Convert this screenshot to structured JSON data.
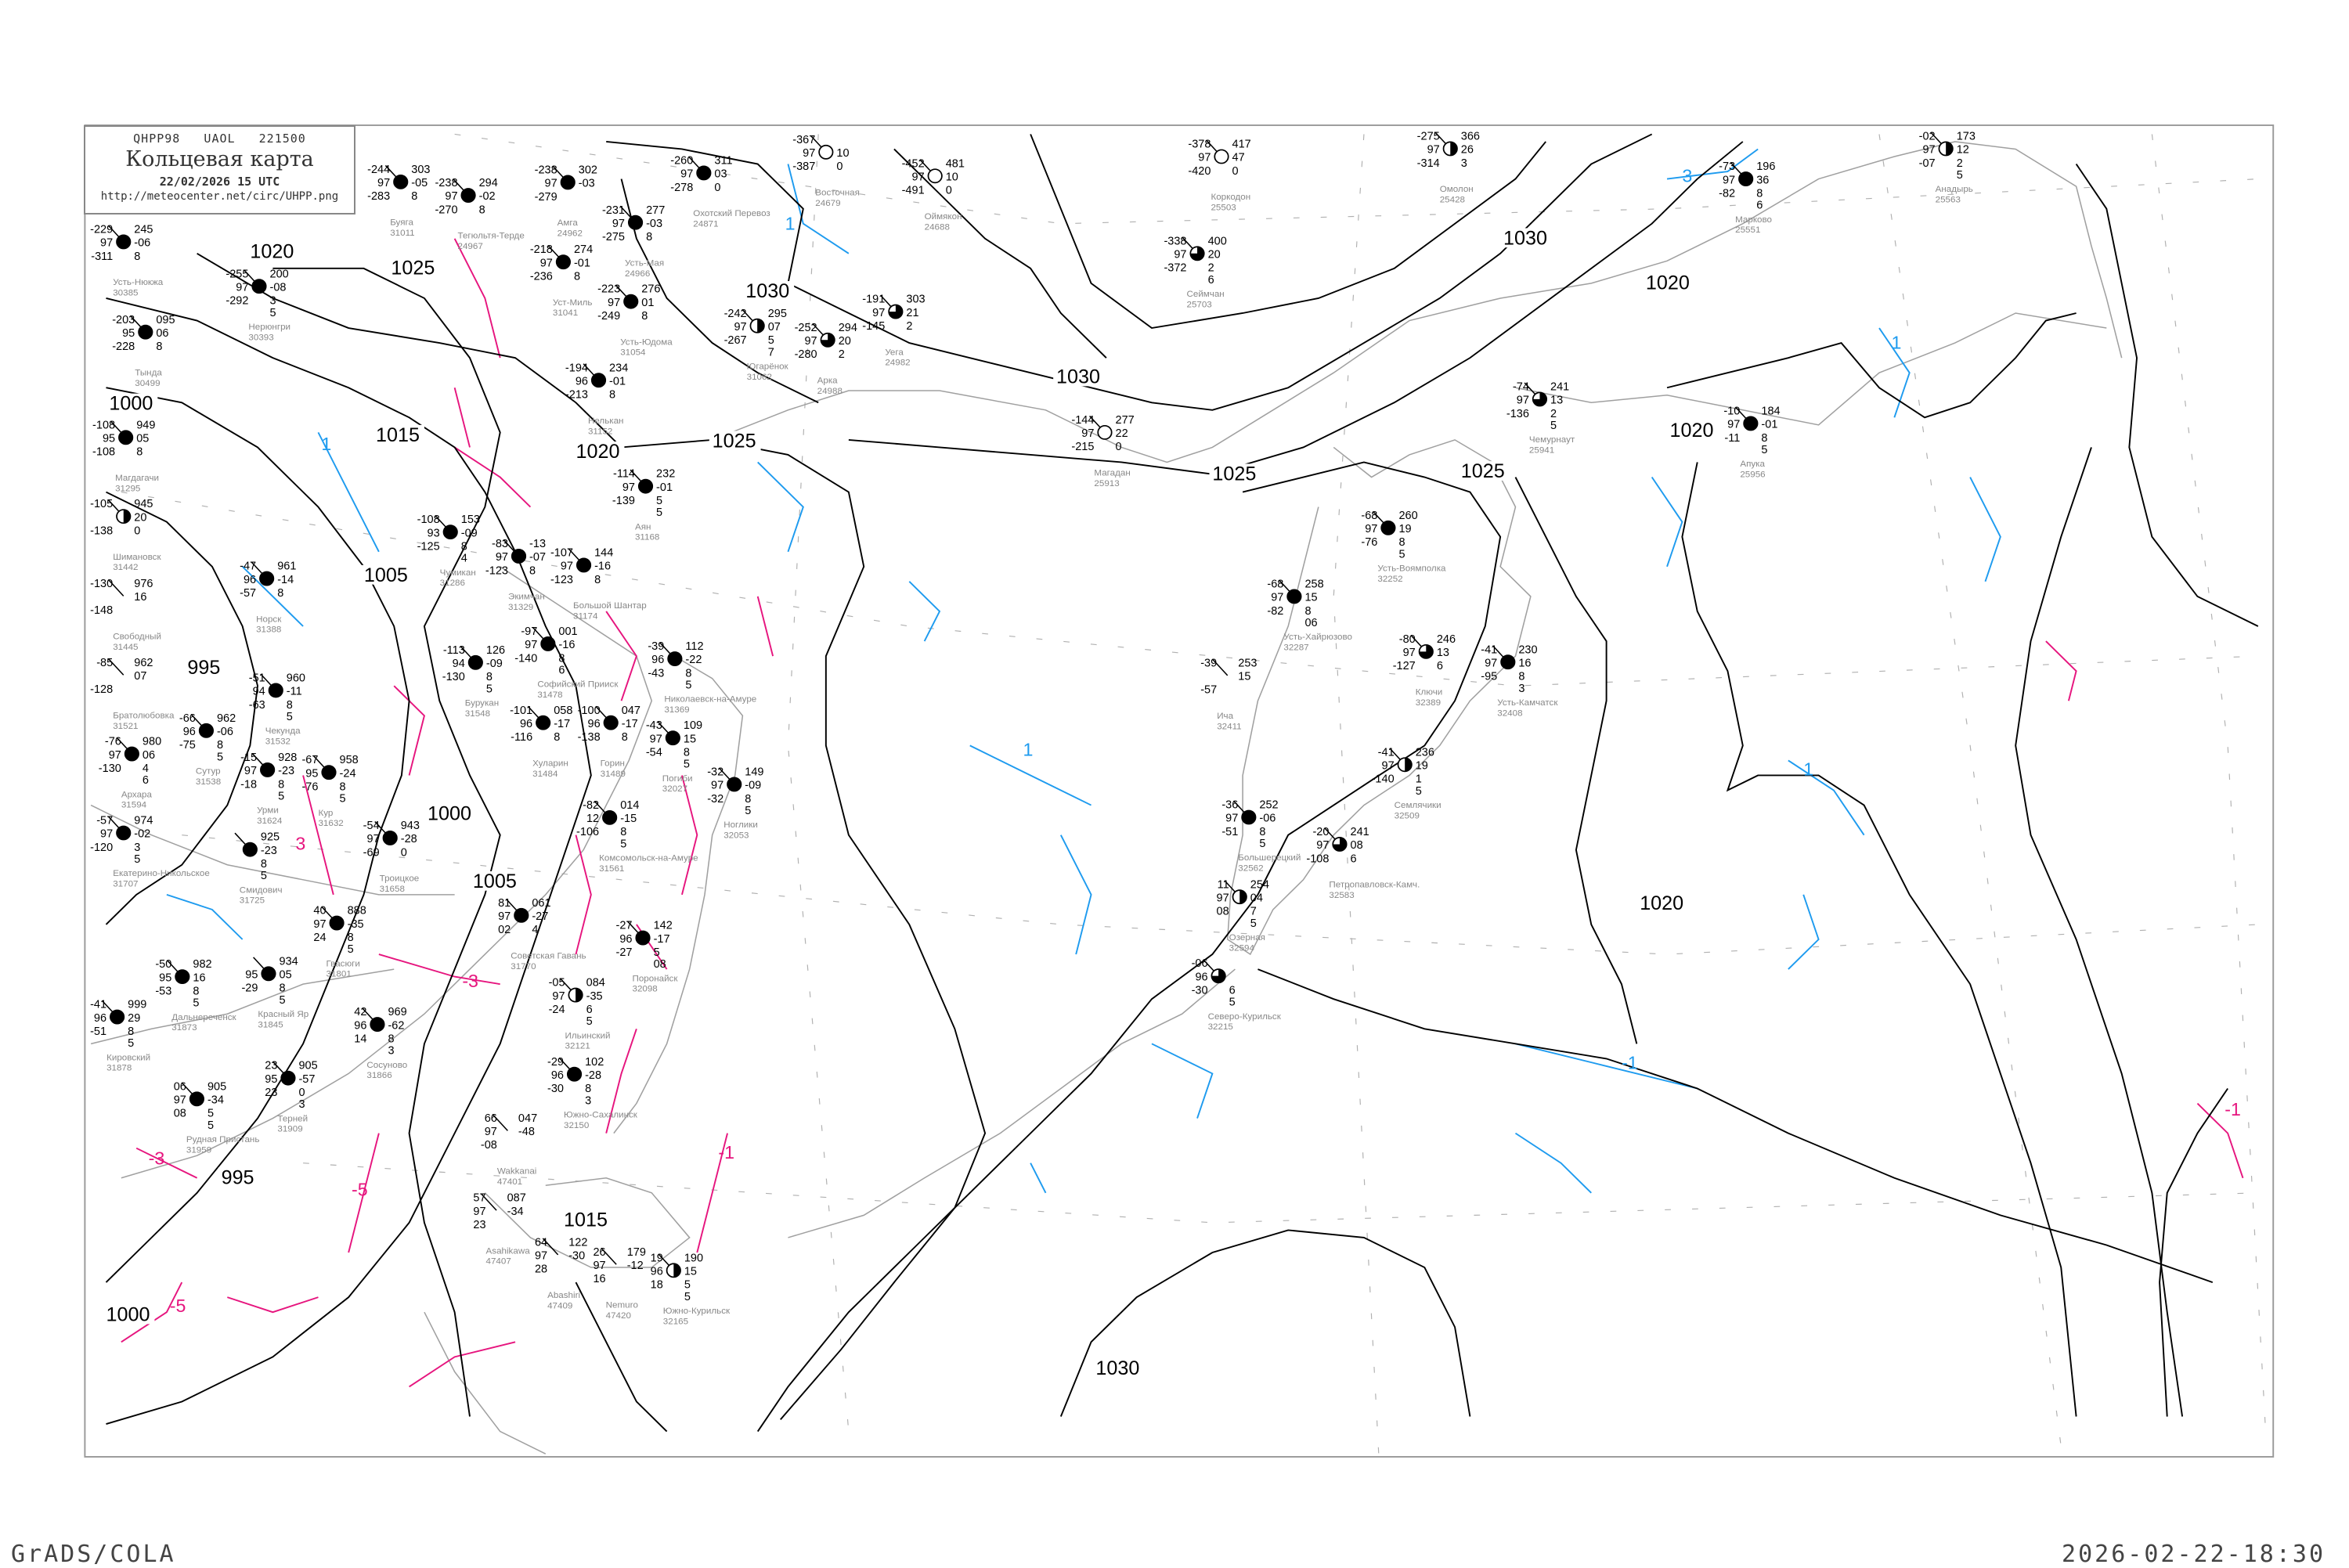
{
  "header": {
    "code": "QHPP98   UAOL   221500",
    "title": "Кольцевая карта",
    "datetime": "22/02/2026 15 UTC",
    "url": "http://meteocenter.net/circ/UHPP.png"
  },
  "footer": {
    "left": "GrADS/COLA",
    "right": "2026-02-22-18:30"
  },
  "colors": {
    "isobar": "#000000",
    "coast": "#a0a0a0",
    "isotherm_cold": "#1e9bef",
    "isotherm_warm": "#e6157e",
    "grid": "#b0b0b0",
    "precip_blue": "#3399ff",
    "precip_green": "#22cc44",
    "precip_yellow": "#ffff99"
  },
  "isobar_labels": [
    "1020",
    "1025",
    "1030",
    "1020",
    "1030",
    "1030",
    "1000",
    "1015",
    "1020",
    "1025",
    "1025",
    "1025",
    "1020",
    "1005",
    "995",
    "1000",
    "1005",
    "1020",
    "1030",
    "1015",
    "995",
    "1000"
  ],
  "isotherm_labels_cold": [
    "1",
    "1",
    "1",
    "1",
    "3",
    "1",
    "-1"
  ],
  "isotherm_labels_warm": [
    "-3",
    "3",
    "-5",
    "-5",
    "-3",
    "-1",
    "-1"
  ],
  "stations": [
    {
      "name": "Коркодон",
      "id": "25503",
      "cover": "empty",
      "tl": "-378",
      "tr": "417",
      "ml": "97",
      "mr": "47",
      "bl": "-420",
      "br": "0",
      "br2": ""
    },
    {
      "name": "Омолон",
      "id": "25428",
      "cover": "half",
      "tl": "-275",
      "tr": "366",
      "ml": "97",
      "mr": "26",
      "bl": "-314",
      "br": "3",
      "br2": ""
    },
    {
      "name": "Сеймчан",
      "id": "25703",
      "cover": "three-quarter",
      "tl": "-338",
      "tr": "400",
      "ml": "97",
      "mr": "20",
      "bl": "-372",
      "br": "2",
      "br2": "6"
    },
    {
      "name": "Марково",
      "id": "25551",
      "cover": "full",
      "tl": "-73",
      "tr": "196",
      "ml": "97",
      "mr": "36",
      "bl": "-82",
      "br": "8",
      "br2": "6"
    },
    {
      "name": "Анадырь",
      "id": "25563",
      "cover": "half",
      "tl": "-02",
      "tr": "173",
      "ml": "97",
      "mr": "12",
      "bl": "-07",
      "br": "2",
      "br2": "5"
    },
    {
      "name": "Чемурнаут",
      "id": "25941",
      "cover": "three-quarter",
      "tl": "-74",
      "tr": "241",
      "ml": "97",
      "mr": "13",
      "bl": "-136",
      "br": "2",
      "br2": "5"
    },
    {
      "name": "Апука",
      "id": "25956",
      "cover": "full",
      "tl": "-10",
      "tr": "184",
      "ml": "97",
      "mr": "-01",
      "bl": "-11",
      "br": "8",
      "br2": "5"
    },
    {
      "name": "Усть-Воямполка",
      "id": "32252",
      "cover": "full",
      "tl": "-68",
      "tr": "260",
      "ml": "97",
      "mr": "19",
      "bl": "-76",
      "br": "8",
      "br2": "5"
    },
    {
      "name": "Усть-Хайрюзово",
      "id": "32287",
      "cover": "full",
      "tl": "-68",
      "tr": "258",
      "ml": "97",
      "mr": "15",
      "bl": "-82",
      "br": "8",
      "br2": "06"
    },
    {
      "name": "Ича",
      "id": "32411",
      "cover": "none",
      "tl": "-39",
      "tr": "253",
      "ml": "",
      "mr": "15",
      "bl": "-57",
      "br": "",
      "br2": ""
    },
    {
      "name": "Ключи",
      "id": "32389",
      "cover": "three-quarter",
      "tl": "-80",
      "tr": "246",
      "ml": "97",
      "mr": "13",
      "bl": "-127",
      "br": "6",
      "br2": ""
    },
    {
      "name": "Усть-Камчатск",
      "id": "32408",
      "cover": "full",
      "tl": "-41",
      "tr": "230",
      "ml": "97",
      "mr": "16",
      "bl": "-95",
      "br": "8",
      "br2": "3"
    },
    {
      "name": "Семлячики",
      "id": "32509",
      "cover": "half",
      "tl": "-41",
      "tr": "236",
      "ml": "97",
      "mr": "19",
      "bl": "-140",
      "br": "1",
      "br2": "5"
    },
    {
      "name": "Большерецкий",
      "id": "32562",
      "cover": "full",
      "tl": "-36",
      "tr": "252",
      "ml": "97",
      "mr": "-06",
      "bl": "-51",
      "br": "8",
      "br2": "5"
    },
    {
      "name": "Петропавловск-Камч.",
      "id": "32583",
      "cover": "three-quarter",
      "tl": "-20",
      "tr": "241",
      "ml": "97",
      "mr": "08",
      "bl": "-108",
      "br": "6",
      "br2": ""
    },
    {
      "name": "Озерная",
      "id": "32594",
      "cover": "half",
      "tl": "11",
      "tr": "254",
      "ml": "97",
      "mr": "04",
      "bl": "08",
      "br": "7",
      "br2": "5"
    },
    {
      "name": "Северо-Курильск",
      "id": "32215",
      "cover": "three-quarter",
      "tl": "-06",
      "tr": "",
      "ml": "96",
      "mr": "",
      "bl": "-30",
      "br": "6",
      "br2": "5"
    },
    {
      "name": "Оймякон",
      "id": "24688",
      "cover": "empty",
      "tl": "-452",
      "tr": "481",
      "ml": "97",
      "mr": "10",
      "bl": "-491",
      "br": "0",
      "br2": ""
    },
    {
      "name": "Восточная",
      "id": "24679",
      "cover": "empty",
      "tl": "-367",
      "tr": "",
      "ml": "97",
      "mr": "10",
      "bl": "-387",
      "br": "0",
      "br2": ""
    },
    {
      "name": "Охотский Перевоз",
      "id": "24871",
      "cover": "full",
      "tl": "-260",
      "tr": "311",
      "ml": "97",
      "mr": "03",
      "bl": "-278",
      "br": "0",
      "br2": ""
    },
    {
      "name": "Усть-Мая",
      "id": "24966",
      "cover": "full",
      "tl": "-231",
      "tr": "277",
      "ml": "97",
      "mr": "-03",
      "bl": "-275",
      "br": "8",
      "br2": ""
    },
    {
      "name": "Амга",
      "id": "24962",
      "cover": "full",
      "tl": "-238",
      "tr": "302",
      "ml": "97",
      "mr": "-03",
      "bl": "-279",
      "br": "",
      "br2": ""
    },
    {
      "name": "Тегюльтя-Терде",
      "id": "24967",
      "cover": "full",
      "tl": "-238",
      "tr": "294",
      "ml": "97",
      "mr": "-02",
      "bl": "-270",
      "br": "8",
      "br2": ""
    },
    {
      "name": "Буяга",
      "id": "31011",
      "cover": "full",
      "tl": "-244",
      "tr": "303",
      "ml": "97",
      "mr": "-05",
      "bl": "-283",
      "br": "8",
      "br2": ""
    },
    {
      "name": "Усть-Нюкжа",
      "id": "30385",
      "cover": "full",
      "tl": "-229",
      "tr": "245",
      "ml": "97",
      "mr": "-06",
      "bl": "-311",
      "br": "8",
      "br2": ""
    },
    {
      "name": "Нерюнгри",
      "id": "30393",
      "cover": "full",
      "tl": "-255",
      "tr": "200",
      "ml": "97",
      "mr": "-08",
      "bl": "-292",
      "br": "3",
      "br2": "5"
    },
    {
      "name": "Тында",
      "id": "30499",
      "cover": "full",
      "tl": "-203",
      "tr": "095",
      "ml": "95",
      "mr": "06",
      "bl": "-228",
      "br": "8",
      "br2": ""
    },
    {
      "name": "Уст-Миль",
      "id": "31041",
      "cover": "full",
      "tl": "-218",
      "tr": "274",
      "ml": "97",
      "mr": "-01",
      "bl": "-236",
      "br": "8",
      "br2": ""
    },
    {
      "name": "Усть-Юдома",
      "id": "31054",
      "cover": "full",
      "tl": "-223",
      "tr": "276",
      "ml": "97",
      "mr": "01",
      "bl": "-249",
      "br": "8",
      "br2": ""
    },
    {
      "name": "Югарёнок",
      "id": "31062",
      "cover": "half",
      "tl": "-242",
      "tr": "295",
      "ml": "97",
      "mr": "07",
      "bl": "-267",
      "br": "5",
      "br2": "7"
    },
    {
      "name": "Уега",
      "id": "24982",
      "cover": "three-quarter",
      "tl": "-191",
      "tr": "303",
      "ml": "97",
      "mr": "21",
      "bl": "-145",
      "br": "2",
      "br2": ""
    },
    {
      "name": "Арка",
      "id": "24988",
      "cover": "three-quarter",
      "tl": "-252",
      "tr": "294",
      "ml": "97",
      "mr": "20",
      "bl": "-280",
      "br": "2",
      "br2": ""
    },
    {
      "name": "Магадан",
      "id": "25913",
      "cover": "empty",
      "tl": "-144",
      "tr": "277",
      "ml": "97",
      "mr": "22",
      "bl": "-215",
      "br": "0",
      "br2": ""
    },
    {
      "name": "Нелькан",
      "id": "31152",
      "cover": "full",
      "tl": "-194",
      "tr": "234",
      "ml": "96",
      "mr": "-01",
      "bl": "-213",
      "br": "8",
      "br2": ""
    },
    {
      "name": "Аян",
      "id": "31168",
      "cover": "full",
      "tl": "-114",
      "tr": "232",
      "ml": "97",
      "mr": "-01",
      "bl": "-139",
      "br": "5",
      "br2": "5"
    },
    {
      "name": "Магдагачи",
      "id": "31295",
      "cover": "full",
      "tl": "-108",
      "tr": "949",
      "ml": "95",
      "mr": "05",
      "bl": "-108",
      "br": "8",
      "br2": ""
    },
    {
      "name": "Шимановск",
      "id": "31442",
      "cover": "half",
      "tl": "-105",
      "tr": "945",
      "ml": "",
      "mr": "20",
      "bl": "-138",
      "br": "0",
      "br2": ""
    },
    {
      "name": "Свободный",
      "id": "31445",
      "cover": "none",
      "tl": "-130",
      "tr": "976",
      "ml": "",
      "mr": "16",
      "bl": "-148",
      "br": "",
      "br2": ""
    },
    {
      "name": "Норск",
      "id": "31388",
      "cover": "full",
      "tl": "-47",
      "tr": "961",
      "ml": "96",
      "mr": "-14",
      "bl": "-57",
      "br": "8",
      "br2": ""
    },
    {
      "name": "Экимчан",
      "id": "31329",
      "cover": "full",
      "tl": "-83",
      "tr": "-13",
      "ml": "97",
      "mr": "-07",
      "bl": "-123",
      "br": "8",
      "br2": ""
    },
    {
      "name": "Чумикан",
      "id": "31286",
      "cover": "full",
      "tl": "-108",
      "tr": "153",
      "ml": "93",
      "mr": "-09",
      "bl": "-125",
      "br": "8",
      "br2": "4"
    },
    {
      "name": "Бурукан",
      "id": "31548",
      "cover": "full",
      "tl": "-113",
      "tr": "126",
      "ml": "94",
      "mr": "-09",
      "bl": "-130",
      "br": "8",
      "br2": "5"
    },
    {
      "name": "Софийский Прииск",
      "id": "31478",
      "cover": "full",
      "tl": "-97",
      "tr": "001",
      "ml": "97",
      "mr": "-16",
      "bl": "-140",
      "br": "8",
      "br2": "6"
    },
    {
      "name": "Большой Шантар",
      "id": "31174",
      "cover": "full",
      "tl": "-107",
      "tr": "144",
      "ml": "97",
      "mr": "-16",
      "bl": "-123",
      "br": "8",
      "br2": ""
    },
    {
      "name": "Николаевск-на-Амуре",
      "id": "31369",
      "cover": "full",
      "tl": "-39",
      "tr": "112",
      "ml": "96",
      "mr": "-22",
      "bl": "-43",
      "br": "8",
      "br2": "5"
    },
    {
      "name": "Погиби",
      "id": "32027",
      "cover": "full",
      "tl": "-43",
      "tr": "109",
      "ml": "97",
      "mr": "15",
      "bl": "-54",
      "br": "8",
      "br2": "5"
    },
    {
      "name": "Ноглики",
      "id": "32053",
      "cover": "full",
      "tl": "-32",
      "tr": "149",
      "ml": "97",
      "mr": "-09",
      "bl": "-32",
      "br": "8",
      "br2": "5"
    },
    {
      "name": "Хуларин",
      "id": "31484",
      "cover": "full",
      "tl": "-101",
      "tr": "058",
      "ml": "96",
      "mr": "-17",
      "bl": "-116",
      "br": "8",
      "br2": ""
    },
    {
      "name": "Горин",
      "id": "31489",
      "cover": "full",
      "tl": "-100",
      "tr": "047",
      "ml": "96",
      "mr": "-17",
      "bl": "-138",
      "br": "8",
      "br2": ""
    },
    {
      "name": "Комсомольск-на-Амуре",
      "id": "31561",
      "cover": "full",
      "tl": "-82",
      "tr": "014",
      "ml": "12",
      "mr": "-15",
      "bl": "-106",
      "br": "8",
      "br2": "5"
    },
    {
      "name": "Чекунда",
      "id": "31532",
      "cover": "full",
      "tl": "-51",
      "tr": "960",
      "ml": "94",
      "mr": "-11",
      "bl": "-63",
      "br": "8",
      "br2": "5"
    },
    {
      "name": "Сутур",
      "id": "31538",
      "cover": "full",
      "tl": "-66",
      "tr": "962",
      "ml": "96",
      "mr": "-06",
      "bl": "-75",
      "br": "8",
      "br2": "5"
    },
    {
      "name": "Архара",
      "id": "31594",
      "cover": "full",
      "tl": "-76",
      "tr": "980",
      "ml": "97",
      "mr": "06",
      "bl": "-130",
      "br": "4",
      "br2": "6"
    },
    {
      "name": "Братолюбовка",
      "id": "31521",
      "cover": "none",
      "tl": "-85",
      "tr": "962",
      "ml": "",
      "mr": "07",
      "bl": "-128",
      "br": "",
      "br2": ""
    },
    {
      "name": "Урми",
      "id": "31624",
      "cover": "full",
      "tl": "-15",
      "tr": "928",
      "ml": "97",
      "mr": "-23",
      "bl": "-18",
      "br": "8",
      "br2": "5"
    },
    {
      "name": "Кур",
      "id": "31632",
      "cover": "full",
      "tl": "-67",
      "tr": "958",
      "ml": "95",
      "mr": "-24",
      "bl": "-76",
      "br": "8",
      "br2": "5"
    },
    {
      "name": "Екатерино-Никольское",
      "id": "31707",
      "cover": "full",
      "tl": "-57",
      "tr": "974",
      "ml": "97",
      "mr": "-02",
      "bl": "-120",
      "br": "3",
      "br2": "5"
    },
    {
      "name": "Смидович",
      "id": "31725",
      "cover": "full",
      "tl": "",
      "tr": "925",
      "ml": "",
      "mr": "-23",
      "bl": "",
      "br": "8",
      "br2": "5"
    },
    {
      "name": "Троицкое",
      "id": "31658",
      "cover": "full",
      "tl": "-54",
      "tr": "943",
      "ml": "97",
      "mr": "-28",
      "bl": "-69",
      "br": "0",
      "br2": ""
    },
    {
      "name": "Гвасюги",
      "id": "31801",
      "cover": "full",
      "tl": "40",
      "tr": "888",
      "ml": "97",
      "mr": "-35",
      "bl": "24",
      "br": "8",
      "br2": "5"
    },
    {
      "name": "Дальнереченск",
      "id": "31873",
      "cover": "full",
      "tl": "-50",
      "tr": "982",
      "ml": "95",
      "mr": "16",
      "bl": "-53",
      "br": "8",
      "br2": "5"
    },
    {
      "name": "Красный Яр",
      "id": "31845",
      "cover": "full",
      "tl": "",
      "tr": "934",
      "ml": "95",
      "mr": "05",
      "bl": "-29",
      "br": "8",
      "br2": "5"
    },
    {
      "name": "Кировский",
      "id": "31878",
      "cover": "full",
      "tl": "-41",
      "tr": "999",
      "ml": "96",
      "mr": "29",
      "bl": "-51",
      "br": "8",
      "br2": "5"
    },
    {
      "name": "Сосуново",
      "id": "31866",
      "cover": "full",
      "tl": "42",
      "tr": "969",
      "ml": "96",
      "mr": "-62",
      "bl": "14",
      "br": "8",
      "br2": "3"
    },
    {
      "name": "Терней",
      "id": "31909",
      "cover": "full",
      "tl": "23",
      "tr": "905",
      "ml": "95",
      "mr": "-57",
      "bl": "23",
      "br": "0",
      "br2": "3"
    },
    {
      "name": "Рудная Пристань",
      "id": "31959",
      "cover": "full",
      "tl": "06",
      "tr": "905",
      "ml": "97",
      "mr": "-34",
      "bl": "08",
      "br": "5",
      "br2": "5"
    },
    {
      "name": "Советская Гавань",
      "id": "31770",
      "cover": "full",
      "tl": "81",
      "tr": "061",
      "ml": "97",
      "mr": "-27",
      "bl": "02",
      "br": "4",
      "br2": ""
    },
    {
      "name": "Поронайск",
      "id": "32098",
      "cover": "full",
      "tl": "-27",
      "tr": "142",
      "ml": "96",
      "mr": "-17",
      "bl": "-27",
      "br": "5",
      "br2": "08"
    },
    {
      "name": "Ильинский",
      "id": "32121",
      "cover": "half",
      "tl": "-05",
      "tr": "084",
      "ml": "97",
      "mr": "-35",
      "bl": "-24",
      "br": "6",
      "br2": "5"
    },
    {
      "name": "Южно-Сахалинск",
      "id": "32150",
      "cover": "full",
      "tl": "-29",
      "tr": "102",
      "ml": "96",
      "mr": "-28",
      "bl": "-30",
      "br": "8",
      "br2": "3"
    },
    {
      "name": "Южно-Курильск",
      "id": "32165",
      "cover": "half",
      "tl": "19",
      "tr": "190",
      "ml": "96",
      "mr": "15",
      "bl": "18",
      "br": "5",
      "br2": "5"
    },
    {
      "name": "Wakkanai",
      "id": "47401",
      "cover": "none",
      "tl": "66",
      "tr": "047",
      "ml": "97",
      "mr": "-48",
      "bl": "-08",
      "br": "",
      "br2": ""
    },
    {
      "name": "Asahikawa",
      "id": "47407",
      "cover": "none",
      "tl": "57",
      "tr": "087",
      "ml": "97",
      "mr": "-34",
      "bl": "23",
      "br": "",
      "br2": ""
    },
    {
      "name": "Abashiri",
      "id": "47409",
      "cover": "none",
      "tl": "64",
      "tr": "122",
      "ml": "97",
      "mr": "-30",
      "bl": "28",
      "br": "",
      "br2": ""
    },
    {
      "name": "Nemuro",
      "id": "47420",
      "cover": "none",
      "tl": "26",
      "tr": "179",
      "ml": "97",
      "mr": "-12",
      "bl": "16",
      "br": "",
      "br2": ""
    }
  ]
}
